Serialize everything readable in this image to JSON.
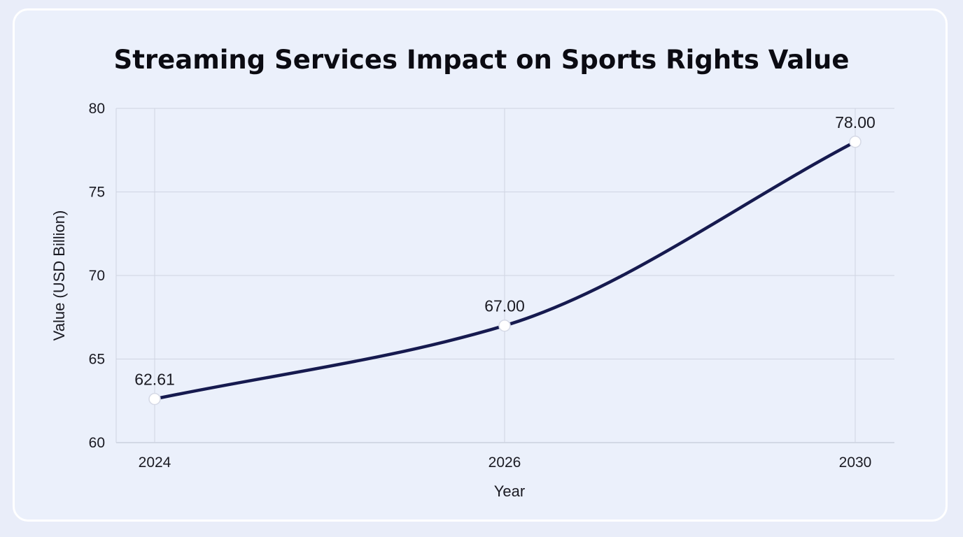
{
  "chart_data": {
    "type": "line",
    "title": "Streaming Services Impact on Sports Rights Value",
    "xlabel": "Year",
    "ylabel": "Value (USD Billion)",
    "x": [
      "2024",
      "2026",
      "2030"
    ],
    "series": [
      {
        "values": [
          62.61,
          67.0,
          78.0
        ],
        "labels": [
          "62.61",
          "67.00",
          "78.00"
        ],
        "color": "#161a4f"
      }
    ],
    "ylim": [
      60,
      80
    ],
    "yticks": [
      "60",
      "65",
      "70",
      "75",
      "80"
    ],
    "x_spacing": "categorical",
    "grid": true,
    "legend": "none",
    "curve": "smooth"
  }
}
